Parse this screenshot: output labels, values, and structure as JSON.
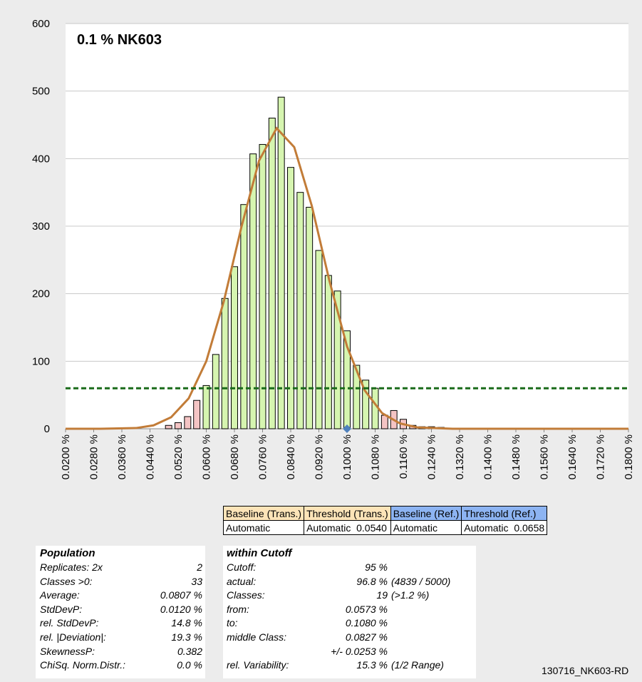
{
  "chart_data": {
    "type": "histogram",
    "title": "0.1 % NK603",
    "x": [
      0.0493,
      0.052,
      0.0547,
      0.0573,
      0.06,
      0.0627,
      0.0653,
      0.068,
      0.0707,
      0.0733,
      0.076,
      0.0787,
      0.0813,
      0.084,
      0.0867,
      0.0893,
      0.092,
      0.0947,
      0.0973,
      0.1,
      0.1027,
      0.1053,
      0.108,
      0.1107,
      0.1133,
      0.116,
      0.1187,
      0.1213,
      0.124,
      0.1267,
      0.1293,
      0.132,
      0.1347
    ],
    "values": [
      5,
      9,
      18,
      42,
      64,
      110,
      193,
      240,
      332,
      407,
      421,
      460,
      491,
      387,
      350,
      328,
      264,
      227,
      204,
      145,
      94,
      72,
      60,
      20,
      27,
      14,
      5,
      3,
      3,
      2,
      1,
      1,
      1
    ],
    "colors": [
      "#f4c4c4",
      "#f4c4c4",
      "#f4c4c4",
      "#f4c4c4",
      "#d6f5b0",
      "#d6f5b0",
      "#d6f5b0",
      "#d6f5b0",
      "#d6f5b0",
      "#d6f5b0",
      "#d6f5b0",
      "#d6f5b0",
      "#d6f5b0",
      "#d6f5b0",
      "#d6f5b0",
      "#d6f5b0",
      "#d6f5b0",
      "#d6f5b0",
      "#d6f5b0",
      "#d6f5b0",
      "#d6f5b0",
      "#d6f5b0",
      "#d6f5b0",
      "#f4c4c4",
      "#f4c4c4",
      "#f4c4c4",
      "#f4c4c4",
      "#f4c4c4",
      "#f4c4c4",
      "#f4c4c4",
      "#f4c4c4",
      "#f4c4c4",
      "#f4c4c4"
    ],
    "curve": {
      "color": "#c27c38",
      "x": [
        0.02,
        0.03,
        0.04,
        0.045,
        0.05,
        0.055,
        0.06,
        0.065,
        0.07,
        0.075,
        0.08,
        0.085,
        0.09,
        0.095,
        0.1,
        0.105,
        0.11,
        0.115,
        0.12,
        0.13,
        0.18
      ],
      "values": [
        0,
        0,
        1,
        5,
        17,
        45,
        100,
        189,
        299,
        397,
        445,
        417,
        330,
        219,
        122,
        57,
        23,
        8,
        2,
        0,
        0
      ]
    },
    "threshold_line": {
      "value": 60,
      "color": "#1a6b1a"
    },
    "marker": {
      "x": 0.1,
      "value": 0,
      "color": "#4f81bd"
    },
    "xlim": [
      0.02,
      0.18
    ],
    "xticks": [
      {
        "value": 0.02,
        "label": "0.0200 %"
      },
      {
        "value": 0.028,
        "label": "0.0280 %"
      },
      {
        "value": 0.036,
        "label": "0.0360 %"
      },
      {
        "value": 0.044,
        "label": "0.0440 %"
      },
      {
        "value": 0.052,
        "label": "0.0520 %"
      },
      {
        "value": 0.06,
        "label": "0.0600 %"
      },
      {
        "value": 0.068,
        "label": "0.0680 %"
      },
      {
        "value": 0.076,
        "label": "0.0760 %"
      },
      {
        "value": 0.084,
        "label": "0.0840 %"
      },
      {
        "value": 0.092,
        "label": "0.0920 %"
      },
      {
        "value": 0.1,
        "label": "0.1000 %"
      },
      {
        "value": 0.108,
        "label": "0.1080 %"
      },
      {
        "value": 0.116,
        "label": "0.1160 %"
      },
      {
        "value": 0.124,
        "label": "0.1240 %"
      },
      {
        "value": 0.132,
        "label": "0.1320 %"
      },
      {
        "value": 0.14,
        "label": "0.1400 %"
      },
      {
        "value": 0.148,
        "label": "0.1480 %"
      },
      {
        "value": 0.156,
        "label": "0.1560 %"
      },
      {
        "value": 0.164,
        "label": "0.1640 %"
      },
      {
        "value": 0.172,
        "label": "0.1720 %"
      },
      {
        "value": 0.18,
        "label": "0.1800 %"
      }
    ],
    "ylim": [
      0,
      600
    ],
    "yticks": [
      0,
      100,
      200,
      300,
      400,
      500,
      600
    ],
    "grid": true
  },
  "settings_table": {
    "headers": [
      "Baseline (Trans.)",
      "Threshold (Trans.)",
      "Baseline (Ref.)",
      "Threshold (Ref.)"
    ],
    "header_colors": [
      "#fce4b8",
      "#fce4b8",
      "#8db4f2",
      "#8db4f2"
    ],
    "row": [
      "Automatic",
      "Automatic  0.0540",
      "Automatic",
      "Automatic  0.0658"
    ]
  },
  "population": {
    "title": "Population",
    "rows": [
      [
        "Replicates: 2x",
        "2"
      ],
      [
        "Classes >0:",
        "33"
      ],
      [
        "Average:",
        "0.0807 %"
      ],
      [
        "StdDevP:",
        "0.0120 %"
      ],
      [
        "rel. StdDevP:",
        "14.8 %"
      ],
      [
        "rel. |Deviation|:",
        "19.3 %"
      ],
      [
        "SkewnessP:",
        "0.382"
      ],
      [
        "ChiSq. Norm.Distr.:",
        "0.0 %"
      ]
    ]
  },
  "cutoff": {
    "title": "within Cutoff",
    "rows": [
      {
        "label": "Cutoff:",
        "value": "95 %"
      },
      {
        "label": "actual:",
        "value": "96.8 %",
        "note": "(4839 / 5000)"
      },
      {
        "label": "Classes:",
        "value": "19",
        "note": "(>1.2 %)"
      },
      {
        "label": "from:",
        "value": "0.0573 %"
      },
      {
        "label": "to:",
        "value": "0.1080 %"
      },
      {
        "label": "middle Class:",
        "value": "0.0827 %"
      },
      {
        "value": "+/- 0.0253 %"
      },
      {
        "label": "rel. Variability:",
        "value": "15.3 %",
        "note": "(1/2 Range)"
      }
    ]
  },
  "footer": "130716_NK603-RD"
}
